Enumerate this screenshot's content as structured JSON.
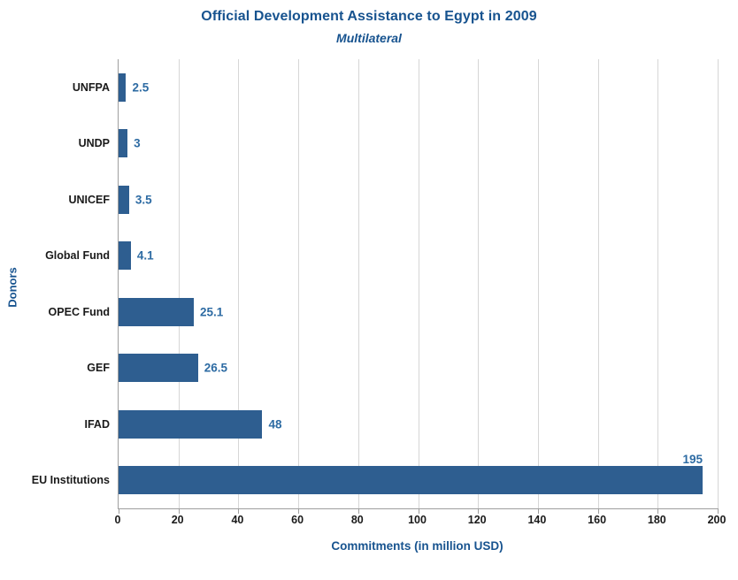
{
  "chart_data": {
    "type": "bar",
    "orientation": "horizontal",
    "title": "Official Development Assistance to Egypt in 2009",
    "subtitle": "Multilateral",
    "xlabel": "Commitments (in million USD)",
    "ylabel": "Donors",
    "categories": [
      "UNFPA",
      "UNDP",
      "UNICEF",
      "Global Fund",
      "OPEC Fund",
      "GEF",
      "IFAD",
      "EU Institutions"
    ],
    "values": [
      2.5,
      3,
      3.5,
      4.1,
      25.1,
      26.5,
      48,
      195
    ],
    "value_labels": [
      "2.5",
      "3",
      "3.5",
      "4.1",
      "25.1",
      "26.5",
      "48",
      "195"
    ],
    "xticks": [
      0,
      20,
      40,
      60,
      80,
      100,
      120,
      140,
      160,
      180,
      200
    ],
    "xlim": [
      0,
      200
    ],
    "grid": "vertical",
    "legend": "none",
    "colors": {
      "bar": "#2e5e90",
      "value_label": "#2d6ba3",
      "title": "#17538f",
      "axis_label": "#17538f",
      "tick_label": "#1a1a1a",
      "gridline": "#d6d6d6",
      "axis_line": "#9e9e9e"
    }
  }
}
